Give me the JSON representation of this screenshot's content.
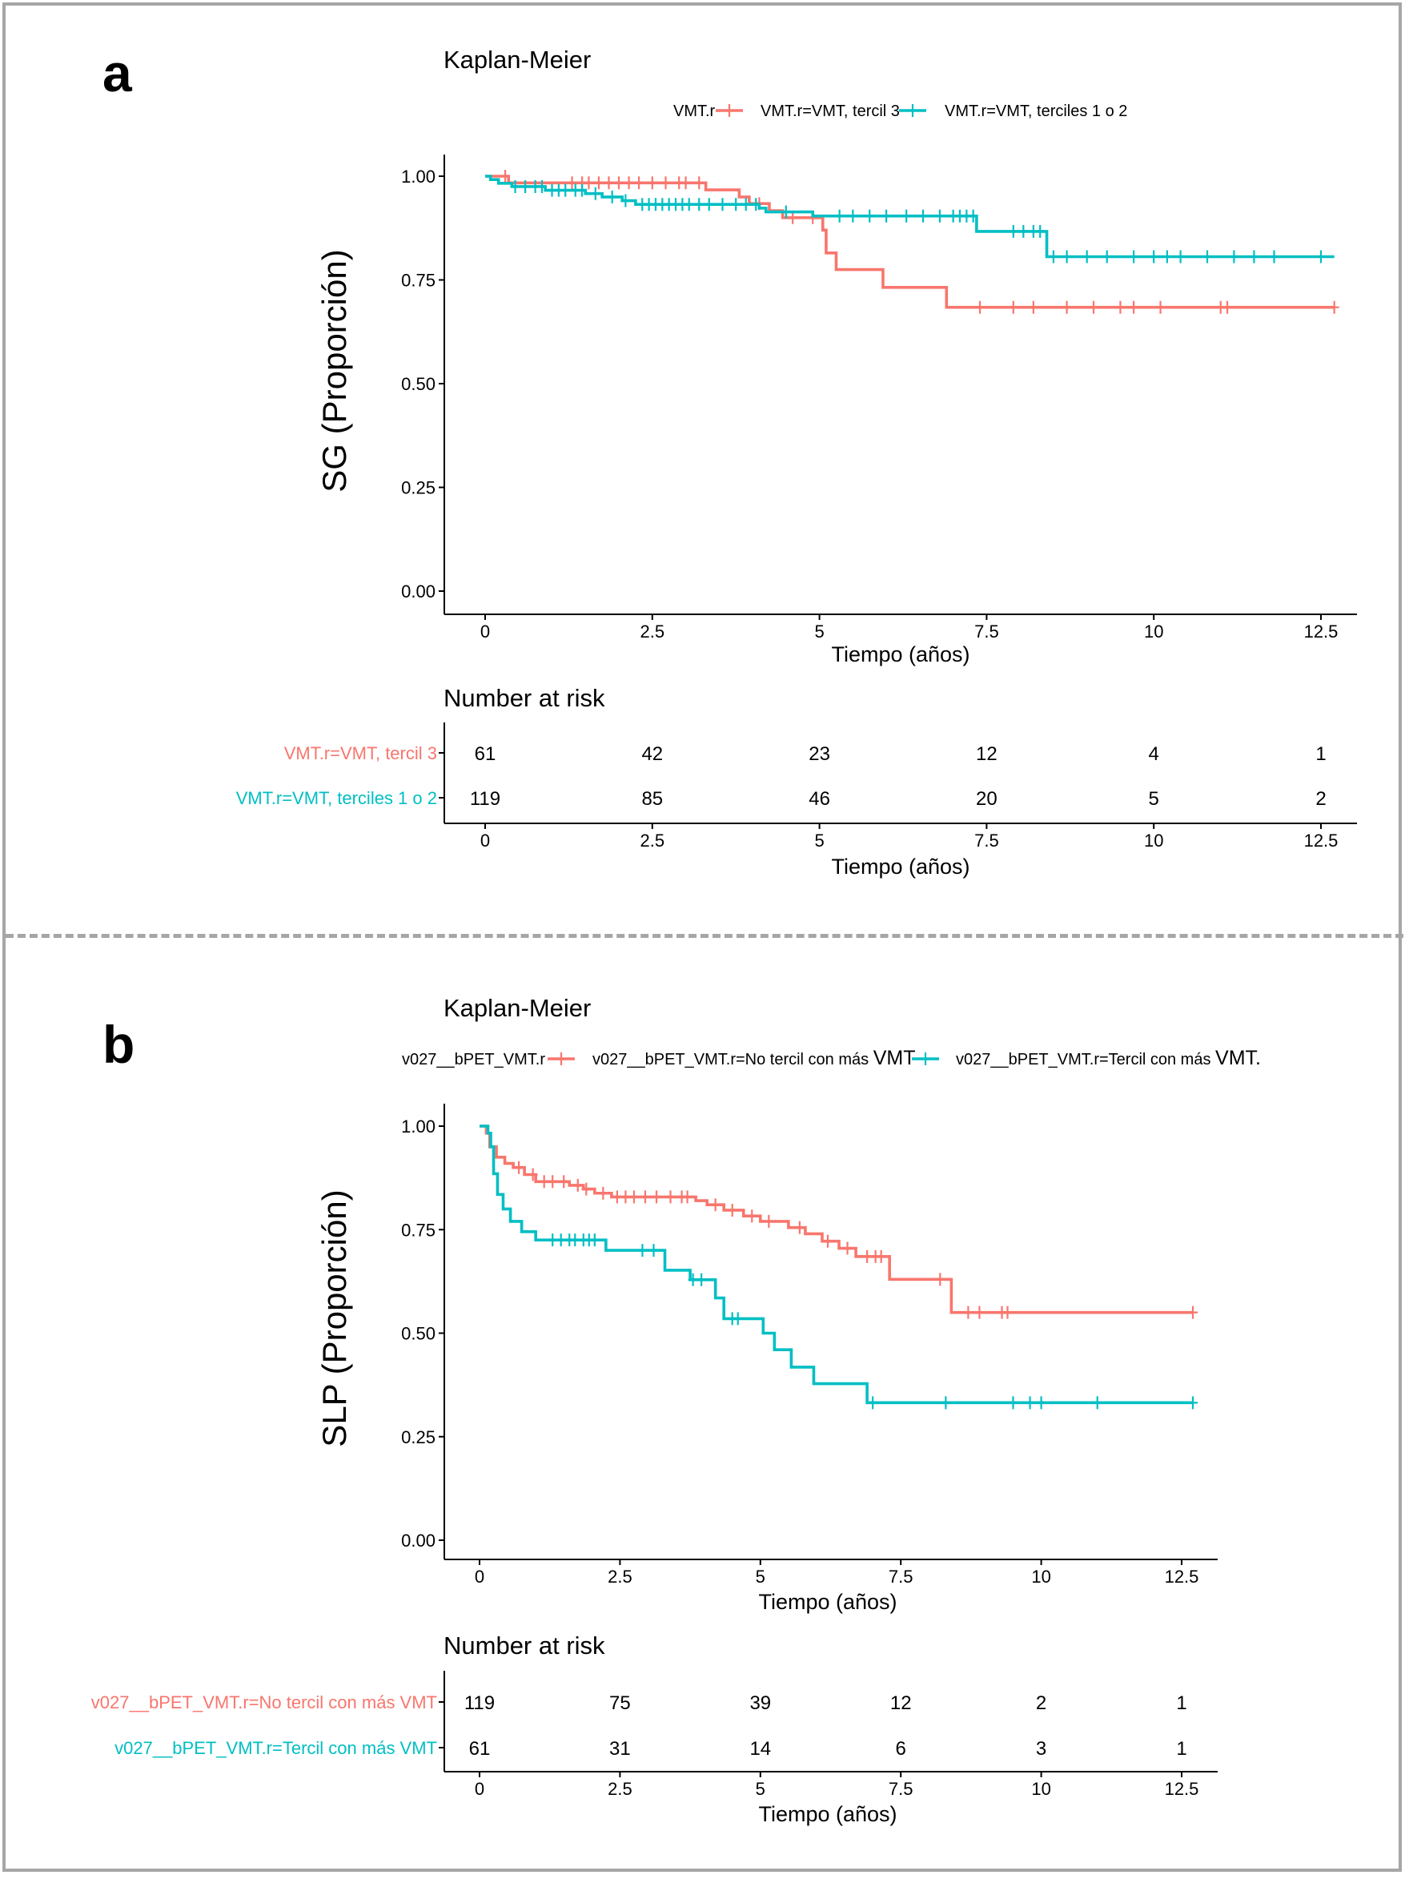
{
  "colors": {
    "red": "#F8766D",
    "cyan": "#00BFC4",
    "frame": "#a6a6a6",
    "axis": "#000000"
  },
  "panels": [
    {
      "letter": "a",
      "title": "Kaplan-Meier",
      "legend_title": "VMT.r",
      "ylabel": "SG (Proporción)",
      "xlabel": "Tiempo (años)",
      "risk_title": "Number at risk",
      "risk_xlabel": "Tiempo (años)"
    },
    {
      "letter": "b",
      "title": "Kaplan-Meier",
      "legend_title": "v027__bPET_VMT.r",
      "ylabel": "SLP (Proporción)",
      "xlabel": "Tiempo (años)",
      "risk_title": "Number at risk",
      "risk_xlabel": "Tiempo (años)"
    }
  ],
  "chart_data": [
    {
      "type": "line",
      "subtype": "kaplan-meier step",
      "title": "Kaplan-Meier",
      "xlabel": "Tiempo (años)",
      "ylabel": "SG (Proporción)",
      "xlim": [
        0,
        12.8
      ],
      "ylim": [
        0,
        1
      ],
      "xticks": [
        0,
        2.5,
        5,
        7.5,
        10,
        12.5
      ],
      "xtick_labels": [
        "0",
        "2.5",
        "5",
        "7.5",
        "10",
        "12.5"
      ],
      "yticks": [
        0,
        0.25,
        0.5,
        0.75,
        1
      ],
      "ytick_labels": [
        "0.00",
        "0.25",
        "0.50",
        "0.75",
        "1.00"
      ],
      "legend": {
        "title": "VMT.r",
        "placement": "top"
      },
      "series": [
        {
          "name": "VMT.r=VMT, tercil 3",
          "color": "#F8766D",
          "steps": [
            [
              0,
              1.0
            ],
            [
              0.35,
              0.984
            ],
            [
              3.3,
              0.967
            ],
            [
              3.8,
              0.95
            ],
            [
              3.95,
              0.934
            ],
            [
              4.25,
              0.917
            ],
            [
              4.45,
              0.9
            ],
            [
              5.05,
              0.87
            ],
            [
              5.1,
              0.815
            ],
            [
              5.25,
              0.775
            ],
            [
              5.95,
              0.732
            ],
            [
              6.9,
              0.684
            ],
            [
              12.7,
              0.684
            ]
          ],
          "censor": [
            0.3,
            1.3,
            1.45,
            1.55,
            1.7,
            1.85,
            2.0,
            2.15,
            2.3,
            2.5,
            2.7,
            2.9,
            3.0,
            3.2,
            4.1,
            4.6,
            4.9,
            7.4,
            7.9,
            8.2,
            8.7,
            9.1,
            9.5,
            9.7,
            10.1,
            11.0,
            11.1,
            12.7
          ]
        },
        {
          "name": "VMT.r=VMT, terciles 1 o 2",
          "color": "#00BFC4",
          "steps": [
            [
              0,
              1.0
            ],
            [
              0.08,
              0.992
            ],
            [
              0.2,
              0.983
            ],
            [
              0.4,
              0.975
            ],
            [
              0.9,
              0.966
            ],
            [
              1.5,
              0.958
            ],
            [
              1.75,
              0.95
            ],
            [
              2.05,
              0.941
            ],
            [
              2.25,
              0.932
            ],
            [
              4.1,
              0.923
            ],
            [
              4.2,
              0.914
            ],
            [
              4.9,
              0.904
            ],
            [
              7.35,
              0.867
            ],
            [
              8.4,
              0.806
            ],
            [
              12.7,
              0.806
            ]
          ],
          "censor": [
            0.45,
            0.6,
            0.75,
            0.85,
            1.0,
            1.1,
            1.2,
            1.35,
            1.45,
            1.65,
            1.9,
            2.1,
            2.35,
            2.45,
            2.55,
            2.65,
            2.75,
            2.85,
            2.95,
            3.05,
            3.2,
            3.35,
            3.55,
            3.75,
            3.9,
            4.05,
            4.5,
            5.3,
            5.5,
            5.75,
            6.0,
            6.3,
            6.55,
            6.8,
            7.0,
            7.1,
            7.2,
            7.3,
            7.9,
            8.05,
            8.2,
            8.3,
            8.5,
            8.7,
            9.0,
            9.3,
            9.7,
            10.0,
            10.2,
            10.4,
            10.8,
            11.2,
            11.5,
            11.8,
            12.5
          ]
        }
      ],
      "risk_table": {
        "title": "Number at risk",
        "xlabel": "Tiempo (años)",
        "times": [
          0,
          2.5,
          5,
          7.5,
          10,
          12.5
        ],
        "rows": [
          {
            "label": "VMT.r=VMT, tercil 3",
            "color": "#F8766D",
            "values": [
              61,
              42,
              23,
              12,
              4,
              1
            ]
          },
          {
            "label": "VMT.r=VMT, terciles 1 o 2",
            "color": "#00BFC4",
            "values": [
              119,
              85,
              46,
              20,
              5,
              2
            ]
          }
        ]
      }
    },
    {
      "type": "line",
      "subtype": "kaplan-meier step",
      "title": "Kaplan-Meier",
      "xlabel": "Tiempo (años)",
      "ylabel": "SLP (Proporción)",
      "xlim": [
        0,
        12.8
      ],
      "ylim": [
        0,
        1
      ],
      "xticks": [
        0,
        2.5,
        5,
        7.5,
        10,
        12.5
      ],
      "xtick_labels": [
        "0",
        "2.5",
        "5",
        "7.5",
        "10",
        "12.5"
      ],
      "yticks": [
        0,
        0.25,
        0.5,
        0.75,
        1
      ],
      "ytick_labels": [
        "0.00",
        "0.25",
        "0.50",
        "0.75",
        "1.00"
      ],
      "legend": {
        "title": "v027__bPET_VMT.r",
        "placement": "top"
      },
      "series": [
        {
          "name": "v027__bPET_VMT.r=No tercil con más VMT",
          "color": "#F8766D",
          "legend_label_html": [
            "v027__bPET_VMT.r=No tercil con más ",
            "VMT"
          ],
          "steps": [
            [
              0,
              1.0
            ],
            [
              0.12,
              0.983
            ],
            [
              0.18,
              0.95
            ],
            [
              0.3,
              0.925
            ],
            [
              0.45,
              0.91
            ],
            [
              0.6,
              0.9
            ],
            [
              0.8,
              0.883
            ],
            [
              1.0,
              0.866
            ],
            [
              1.6,
              0.857
            ],
            [
              1.85,
              0.848
            ],
            [
              2.05,
              0.838
            ],
            [
              2.35,
              0.829
            ],
            [
              3.85,
              0.82
            ],
            [
              4.05,
              0.81
            ],
            [
              4.35,
              0.797
            ],
            [
              4.7,
              0.783
            ],
            [
              5.0,
              0.77
            ],
            [
              5.5,
              0.755
            ],
            [
              5.8,
              0.74
            ],
            [
              6.1,
              0.722
            ],
            [
              6.4,
              0.705
            ],
            [
              6.7,
              0.685
            ],
            [
              7.3,
              0.63
            ],
            [
              8.4,
              0.55
            ],
            [
              12.7,
              0.55
            ]
          ],
          "censor": [
            0.7,
            0.95,
            1.15,
            1.3,
            1.5,
            1.75,
            1.9,
            2.2,
            2.45,
            2.6,
            2.75,
            2.95,
            3.15,
            3.4,
            3.6,
            3.7,
            4.2,
            4.5,
            4.85,
            5.15,
            5.7,
            6.2,
            6.55,
            6.9,
            7.05,
            7.15,
            8.2,
            8.7,
            8.9,
            9.3,
            9.4,
            12.7
          ]
        },
        {
          "name": "v027__bPET_VMT.r=Tercil con más VMT.",
          "color": "#00BFC4",
          "legend_label_html": [
            "v027__bPET_VMT.r=Tercil con más ",
            "VMT."
          ],
          "steps": [
            [
              0,
              1.0
            ],
            [
              0.15,
              0.983
            ],
            [
              0.2,
              0.95
            ],
            [
              0.25,
              0.885
            ],
            [
              0.32,
              0.835
            ],
            [
              0.42,
              0.8
            ],
            [
              0.55,
              0.77
            ],
            [
              0.75,
              0.745
            ],
            [
              1.0,
              0.725
            ],
            [
              2.25,
              0.7
            ],
            [
              3.3,
              0.652
            ],
            [
              3.75,
              0.629
            ],
            [
              4.2,
              0.585
            ],
            [
              4.35,
              0.535
            ],
            [
              5.05,
              0.5
            ],
            [
              5.25,
              0.46
            ],
            [
              5.55,
              0.418
            ],
            [
              5.95,
              0.378
            ],
            [
              6.9,
              0.332
            ],
            [
              12.7,
              0.332
            ]
          ],
          "censor": [
            1.3,
            1.45,
            1.6,
            1.7,
            1.85,
            1.95,
            2.05,
            2.9,
            3.1,
            3.8,
            3.95,
            4.5,
            4.6,
            7.0,
            8.3,
            9.5,
            9.8,
            10.0,
            11.0,
            12.7
          ]
        }
      ],
      "risk_table": {
        "title": "Number at risk",
        "xlabel": "Tiempo (años)",
        "times": [
          0,
          2.5,
          5,
          7.5,
          10,
          12.5
        ],
        "rows": [
          {
            "label": "v027__bPET_VMT.r=No tercil con más VMT",
            "color": "#F8766D",
            "values": [
              119,
              75,
              39,
              12,
              2,
              1
            ]
          },
          {
            "label": "v027__bPET_VMT.r=Tercil con más VMT",
            "color": "#00BFC4",
            "values": [
              61,
              31,
              14,
              6,
              3,
              1
            ]
          }
        ]
      }
    }
  ]
}
